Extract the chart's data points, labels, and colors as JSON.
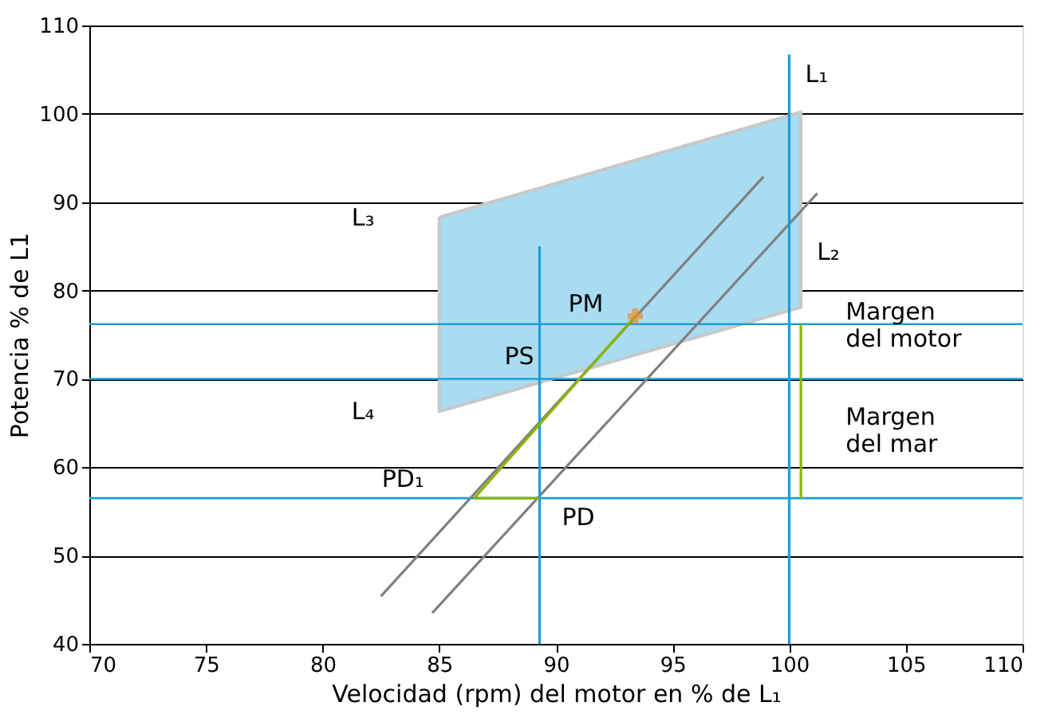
{
  "chart_data": {
    "type": "line",
    "xlabel": "Velocidad (rpm) del motor en % de L₁",
    "ylabel": "Potencia % de L1",
    "xlim": [
      70,
      110
    ],
    "ylim": [
      40,
      110
    ],
    "xticks": [
      70,
      75,
      80,
      85,
      90,
      95,
      100,
      105,
      110
    ],
    "yticks": [
      40,
      50,
      60,
      70,
      80,
      90,
      100,
      110
    ],
    "grid": "y",
    "series": [
      {
        "type": "area",
        "color": "#a9dcf0",
        "x": [
          85,
          100.5,
          100.5,
          85,
          85
        ],
        "values": [
          88.3,
          100.2,
          78.1,
          66.3,
          88.3
        ]
      },
      {
        "type": "line",
        "color": "#808080",
        "x": [
          82.5,
          98.9
        ],
        "values": [
          45.4,
          92.9
        ]
      },
      {
        "type": "line",
        "color": "#808080",
        "x": [
          84.7,
          101.2
        ],
        "values": [
          43.5,
          91.0
        ]
      },
      {
        "type": "line",
        "color": "#1a9fd9",
        "x": [
          100,
          100
        ],
        "values": [
          40,
          106.7
        ]
      },
      {
        "type": "line",
        "color": "#1a9fd9",
        "x": [
          89.3,
          89.3
        ],
        "values": [
          40,
          85
        ]
      },
      {
        "type": "line",
        "color": "#8ab400",
        "x": [
          89.3,
          86.5
        ],
        "values": [
          56.5,
          56.5
        ]
      },
      {
        "type": "line",
        "color": "#8ab400",
        "x": [
          86.5,
          93.4
        ],
        "values": [
          56.5,
          77.1
        ]
      },
      {
        "type": "line",
        "color": "#8ab400",
        "x": [
          100.5,
          100.5,
          100.5
        ],
        "values": [
          76.2,
          70,
          56.5
        ]
      },
      {
        "type": "scatter",
        "marker": "cross",
        "color": "#f08a24",
        "x": [
          93.4
        ],
        "values": [
          77.1
        ]
      }
    ],
    "ref_lines": [
      {
        "axis": "y",
        "value": 76.2,
        "color": "#1a9fd9"
      },
      {
        "axis": "y",
        "value": 70,
        "color": "#1a9fd9"
      },
      {
        "axis": "y",
        "value": 56.5,
        "color": "#1a9fd9"
      }
    ],
    "annotations": [
      {
        "text": "L₁",
        "x": 100,
        "y": 106.7
      },
      {
        "text": "L₂",
        "x": 100.5,
        "y": 78.1
      },
      {
        "text": "L₃",
        "x": 85,
        "y": 88.3
      },
      {
        "text": "L₄",
        "x": 85,
        "y": 66.3
      },
      {
        "text": "PM",
        "x": 93.4,
        "y": 77.1
      },
      {
        "text": "PS",
        "x": 90.8,
        "y": 70
      },
      {
        "text": "PD₁",
        "x": 86.5,
        "y": 56.5
      },
      {
        "text": "PD",
        "x": 89.3,
        "y": 56.5
      },
      {
        "text": "Margen\ndel motor",
        "x": 100.5,
        "y": 76.2
      },
      {
        "text": "Margen\ndel mar",
        "x": 100.5,
        "y": 70
      }
    ]
  }
}
